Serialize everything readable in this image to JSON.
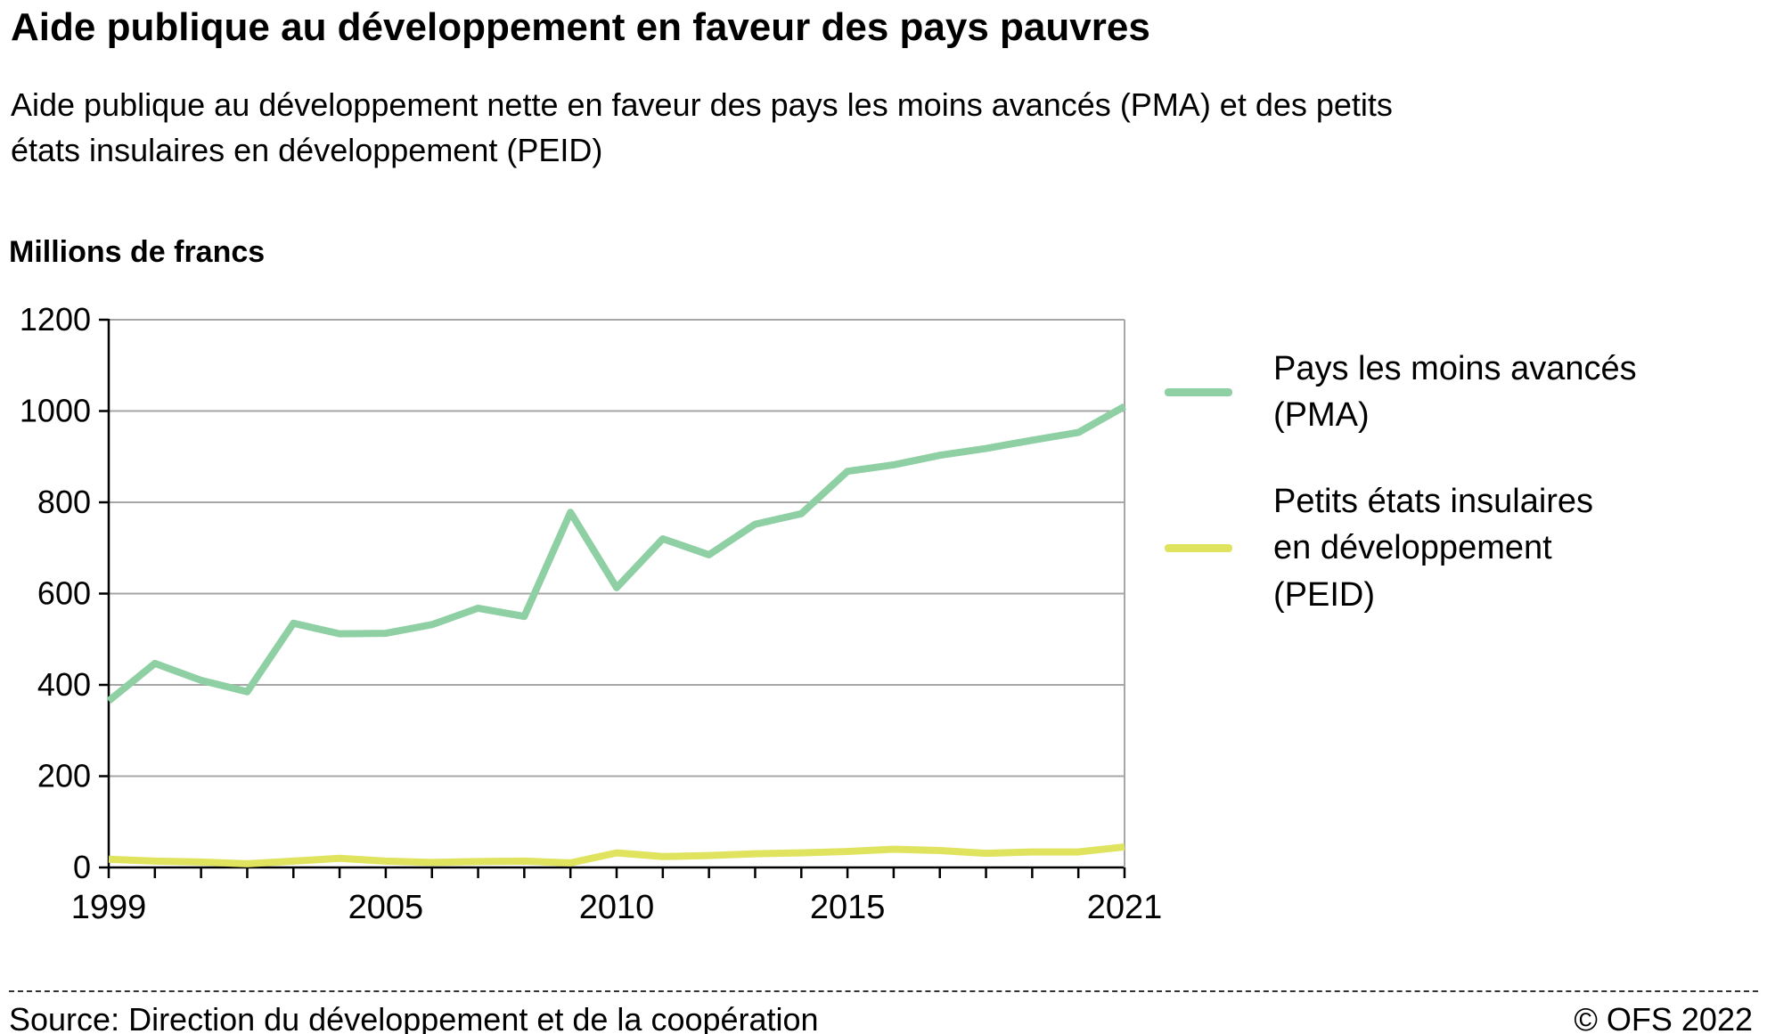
{
  "page": {
    "title": "Aide publique au développement en faveur des pays pauvres",
    "subtitle": "Aide publique au développement nette en faveur des pays les moins avancés (PMA) et des petits états insulaires en développement (PEID)",
    "unit_label": "Millions de francs",
    "footer": {
      "source": "Source: Direction du développement et de la coopération",
      "copyright": "© OFS 2022"
    }
  },
  "chart_data": {
    "type": "line",
    "title": "Aide publique au développement en faveur des pays pauvres",
    "ylabel": "Millions de francs",
    "xlabel": "",
    "ylim": [
      0,
      1200
    ],
    "ytick_step": 200,
    "grid": "horizontal",
    "legend_position": "right",
    "x": [
      1999,
      2000,
      2001,
      2002,
      2003,
      2004,
      2005,
      2006,
      2007,
      2008,
      2009,
      2010,
      2011,
      2012,
      2013,
      2014,
      2015,
      2016,
      2017,
      2018,
      2019,
      2020,
      2021
    ],
    "x_tick_labels": [
      1999,
      2005,
      2010,
      2015,
      2021
    ],
    "axis_colors": {
      "axis": "#000000",
      "grid": "#a6a6a6"
    },
    "series": [
      {
        "key": "pma",
        "name": "Pays les moins avancés (PMA)",
        "legend_lines": [
          "Pays les moins avancés",
          "(PMA)"
        ],
        "color": "#8ed0a3",
        "values": [
          365,
          447,
          410,
          385,
          535,
          512,
          513,
          532,
          568,
          550,
          778,
          613,
          720,
          685,
          752,
          775,
          868,
          882,
          903,
          918,
          936,
          953,
          1010
        ]
      },
      {
        "key": "peid",
        "name": "Petits états insulaires en développement (PEID)",
        "legend_lines": [
          "Petits états insulaires",
          "en développement",
          "(PEID)"
        ],
        "color": "#dfe35e",
        "values": [
          18,
          14,
          12,
          8,
          14,
          20,
          14,
          11,
          13,
          14,
          10,
          32,
          24,
          26,
          30,
          32,
          35,
          40,
          37,
          31,
          34,
          34,
          45
        ]
      }
    ]
  }
}
